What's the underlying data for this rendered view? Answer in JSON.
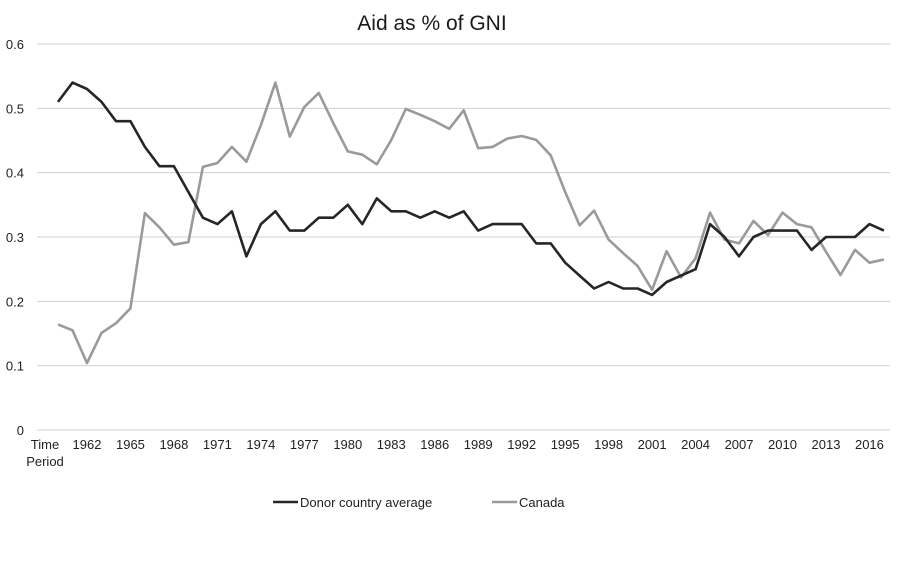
{
  "chart_data": {
    "type": "line",
    "title": "Aid as % of GNI",
    "xlabel": "Time Period",
    "ylabel": "",
    "ylim": [
      0,
      0.6
    ],
    "yticks": [
      "0",
      "0.1",
      "0.2",
      "0.3",
      "0.4",
      "0.5",
      "0.6"
    ],
    "ytick_values": [
      0,
      0.1,
      0.2,
      0.3,
      0.4,
      0.5,
      0.6
    ],
    "grid": true,
    "legend_position": "bottom",
    "first_category_label": [
      "Time",
      "Period"
    ],
    "xtick_labels": [
      "1962",
      "1965",
      "1968",
      "1971",
      "1974",
      "1977",
      "1980",
      "1983",
      "1986",
      "1989",
      "1992",
      "1995",
      "1998",
      "2001",
      "2004",
      "2007",
      "2010",
      "2013",
      "2016"
    ],
    "x": [
      1960,
      1961,
      1962,
      1963,
      1964,
      1965,
      1966,
      1967,
      1968,
      1969,
      1970,
      1971,
      1972,
      1973,
      1974,
      1975,
      1976,
      1977,
      1978,
      1979,
      1980,
      1981,
      1982,
      1983,
      1984,
      1985,
      1986,
      1987,
      1988,
      1989,
      1990,
      1991,
      1992,
      1993,
      1994,
      1995,
      1996,
      1997,
      1998,
      1999,
      2000,
      2001,
      2002,
      2003,
      2004,
      2005,
      2006,
      2007,
      2008,
      2009,
      2010,
      2011,
      2012,
      2013,
      2014,
      2015,
      2016,
      2017
    ],
    "series": [
      {
        "name": "Donor country average",
        "color": "#262626",
        "values": [
          0.51,
          0.54,
          0.53,
          0.51,
          0.48,
          0.48,
          0.44,
          0.41,
          0.41,
          0.37,
          0.33,
          0.32,
          0.34,
          0.27,
          0.32,
          0.34,
          0.31,
          0.31,
          0.33,
          0.33,
          0.35,
          0.32,
          0.36,
          0.34,
          0.34,
          0.33,
          0.34,
          0.33,
          0.34,
          0.31,
          0.32,
          0.32,
          0.32,
          0.29,
          0.29,
          0.26,
          0.24,
          0.22,
          0.23,
          0.22,
          0.22,
          0.21,
          0.23,
          0.24,
          0.25,
          0.32,
          0.3,
          0.27,
          0.3,
          0.31,
          0.31,
          0.31,
          0.28,
          0.3,
          0.3,
          0.3,
          0.32,
          0.31
        ]
      },
      {
        "name": "Canada",
        "color": "#9a9a9a",
        "values": [
          0.164,
          0.155,
          0.104,
          0.151,
          0.166,
          0.189,
          0.337,
          0.315,
          0.288,
          0.292,
          0.409,
          0.415,
          0.44,
          0.417,
          0.474,
          0.54,
          0.456,
          0.502,
          0.524,
          0.477,
          0.433,
          0.428,
          0.413,
          0.451,
          0.499,
          0.49,
          0.48,
          0.468,
          0.497,
          0.438,
          0.44,
          0.453,
          0.457,
          0.451,
          0.427,
          0.37,
          0.318,
          0.341,
          0.296,
          0.275,
          0.255,
          0.218,
          0.278,
          0.237,
          0.267,
          0.338,
          0.296,
          0.29,
          0.325,
          0.303,
          0.338,
          0.32,
          0.315,
          0.277,
          0.241,
          0.28,
          0.26,
          0.265
        ]
      }
    ]
  }
}
